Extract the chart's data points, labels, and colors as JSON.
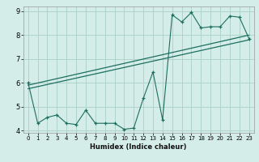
{
  "xlabel": "Humidex (Indice chaleur)",
  "bg_color": "#d4ede8",
  "grid_color": "#aed4cc",
  "line_color": "#1e6e60",
  "xlim": [
    -0.5,
    23.5
  ],
  "ylim": [
    3.9,
    9.2
  ],
  "xticks": [
    0,
    1,
    2,
    3,
    4,
    5,
    6,
    7,
    8,
    9,
    10,
    11,
    12,
    13,
    14,
    15,
    16,
    17,
    18,
    19,
    20,
    21,
    22,
    23
  ],
  "yticks": [
    4,
    5,
    6,
    7,
    8,
    9
  ],
  "data_x": [
    0,
    1,
    2,
    3,
    4,
    5,
    6,
    7,
    8,
    9,
    10,
    11,
    12,
    13,
    14,
    15,
    16,
    17,
    18,
    19,
    20,
    21,
    22,
    23
  ],
  "data_y": [
    6.0,
    4.3,
    4.55,
    4.65,
    4.3,
    4.25,
    4.85,
    4.3,
    4.3,
    4.3,
    4.05,
    4.1,
    5.35,
    6.45,
    4.45,
    8.85,
    8.55,
    8.95,
    8.3,
    8.35,
    8.35,
    8.8,
    8.75,
    7.85
  ],
  "line1_x": [
    0,
    23
  ],
  "line1_y": [
    5.75,
    7.8
  ],
  "line2_x": [
    0,
    23
  ],
  "line2_y": [
    5.9,
    8.0
  ]
}
